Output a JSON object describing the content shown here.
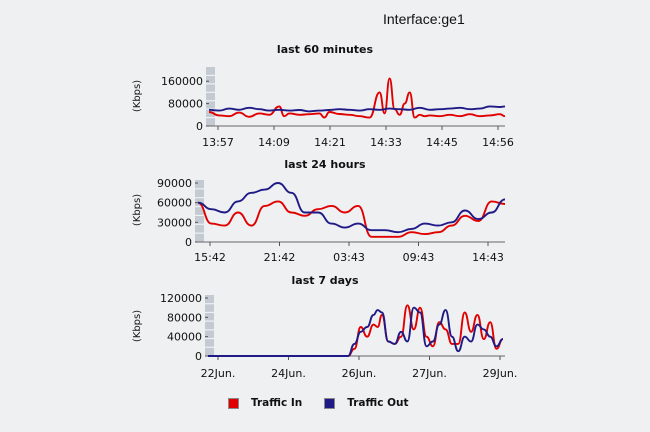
{
  "interface_title": "Interface:ge1",
  "legend": [
    {
      "label": "Traffic In",
      "color": "#e00000"
    },
    {
      "label": "Traffic Out",
      "color": "#201a86"
    }
  ],
  "chart_data": [
    {
      "type": "line",
      "title": "last 60 minutes",
      "ylabel": "(Kbps)",
      "ylim": [
        0,
        200000
      ],
      "yticks": [
        0,
        80000,
        160000
      ],
      "ytick_labels": [
        "0",
        "80000",
        "160000"
      ],
      "x_labels": [
        "13:57",
        "14:09",
        "14:21",
        "14:33",
        "14:45",
        "14:56"
      ],
      "xlim": [
        0,
        59
      ],
      "series": [
        {
          "name": "Traffic In",
          "color": "#e00000",
          "x": [
            0,
            2,
            4,
            6,
            8,
            10,
            12,
            14,
            15,
            16,
            18,
            20,
            22,
            23,
            24,
            26,
            28,
            30,
            32,
            34,
            35,
            36,
            37,
            38,
            39,
            40,
            41,
            42,
            43,
            44,
            46,
            48,
            50,
            52,
            54,
            56,
            58,
            59
          ],
          "y": [
            50000,
            38000,
            35000,
            48000,
            33000,
            45000,
            40000,
            70000,
            35000,
            45000,
            40000,
            42000,
            45000,
            30000,
            50000,
            43000,
            40000,
            35000,
            30000,
            120000,
            45000,
            170000,
            60000,
            40000,
            80000,
            120000,
            30000,
            40000,
            35000,
            38000,
            35000,
            40000,
            35000,
            42000,
            35000,
            38000,
            42000,
            35000
          ]
        },
        {
          "name": "Traffic Out",
          "color": "#201a86",
          "x": [
            0,
            2,
            4,
            6,
            8,
            10,
            12,
            14,
            16,
            18,
            20,
            22,
            24,
            26,
            28,
            30,
            32,
            34,
            36,
            38,
            40,
            42,
            44,
            46,
            48,
            50,
            52,
            54,
            56,
            58,
            59
          ],
          "y": [
            58000,
            55000,
            62000,
            58000,
            65000,
            60000,
            55000,
            58000,
            55000,
            57000,
            52000,
            55000,
            57000,
            60000,
            58000,
            55000,
            60000,
            58000,
            62000,
            60000,
            58000,
            65000,
            58000,
            60000,
            62000,
            65000,
            60000,
            62000,
            70000,
            68000,
            70000
          ]
        }
      ]
    },
    {
      "type": "line",
      "title": "last 24 hours",
      "ylabel": "(Kbps)",
      "ylim": [
        0,
        90000
      ],
      "yticks": [
        0,
        30000,
        60000,
        90000
      ],
      "ytick_labels": [
        "0",
        "30000",
        "60000",
        "90000"
      ],
      "x_labels": [
        "15:42",
        "21:42",
        "03:43",
        "09:43",
        "14:43"
      ],
      "xlim": [
        0,
        23
      ],
      "series": [
        {
          "name": "Traffic In",
          "color": "#e00000",
          "x": [
            0,
            1,
            2,
            3,
            4,
            5,
            6,
            7,
            8,
            9,
            10,
            11,
            12,
            13,
            14,
            15,
            16,
            17,
            18,
            19,
            20,
            21,
            22,
            23
          ],
          "y": [
            60000,
            28000,
            25000,
            45000,
            25000,
            55000,
            62000,
            45000,
            40000,
            50000,
            55000,
            45000,
            55000,
            8000,
            8000,
            8000,
            15000,
            12000,
            15000,
            25000,
            40000,
            32000,
            62000,
            58000
          ]
        },
        {
          "name": "Traffic Out",
          "color": "#201a86",
          "x": [
            0,
            1,
            2,
            3,
            4,
            5,
            6,
            7,
            8,
            9,
            10,
            11,
            12,
            13,
            14,
            15,
            16,
            17,
            18,
            19,
            20,
            21,
            22,
            23
          ],
          "y": [
            60000,
            50000,
            45000,
            62000,
            75000,
            80000,
            90000,
            75000,
            45000,
            45000,
            28000,
            22000,
            28000,
            18000,
            18000,
            15000,
            20000,
            28000,
            25000,
            30000,
            48000,
            35000,
            45000,
            65000
          ]
        }
      ]
    },
    {
      "type": "line",
      "title": "last 7 days",
      "ylabel": "(Kbps)",
      "ylim": [
        0,
        120000
      ],
      "yticks": [
        0,
        40000,
        80000,
        120000
      ],
      "ytick_labels": [
        "0",
        "40000",
        "80000",
        "120000"
      ],
      "x_labels": [
        "22Jun.",
        "24Jun.",
        "26Jun.",
        "27Jun.",
        "29Jun."
      ],
      "xlim": [
        0,
        7
      ],
      "series": [
        {
          "name": "Traffic In",
          "color": "#e00000",
          "x": [
            0,
            3.3,
            3.45,
            3.6,
            3.75,
            3.9,
            4.0,
            4.1,
            4.25,
            4.4,
            4.55,
            4.7,
            4.85,
            5.0,
            5.15,
            5.3,
            5.45,
            5.6,
            5.75,
            5.9,
            6.05,
            6.2,
            6.35,
            6.5,
            6.65,
            6.8,
            6.95
          ],
          "y": [
            0,
            0,
            15000,
            60000,
            40000,
            65000,
            60000,
            85000,
            30000,
            25000,
            40000,
            105000,
            55000,
            100000,
            40000,
            20000,
            70000,
            55000,
            25000,
            25000,
            90000,
            50000,
            85000,
            35000,
            70000,
            15000,
            35000
          ]
        },
        {
          "name": "Traffic Out",
          "color": "#201a86",
          "x": [
            0,
            3.3,
            3.45,
            3.6,
            3.75,
            3.9,
            4.0,
            4.1,
            4.25,
            4.4,
            4.55,
            4.7,
            4.85,
            5.0,
            5.15,
            5.3,
            5.45,
            5.6,
            5.75,
            5.9,
            6.05,
            6.2,
            6.35,
            6.5,
            6.65,
            6.8,
            6.95
          ],
          "y": [
            0,
            0,
            25000,
            50000,
            60000,
            85000,
            95000,
            90000,
            30000,
            25000,
            50000,
            30000,
            100000,
            90000,
            20000,
            30000,
            65000,
            95000,
            40000,
            10000,
            40000,
            30000,
            65000,
            55000,
            40000,
            20000,
            35000
          ]
        }
      ]
    }
  ]
}
